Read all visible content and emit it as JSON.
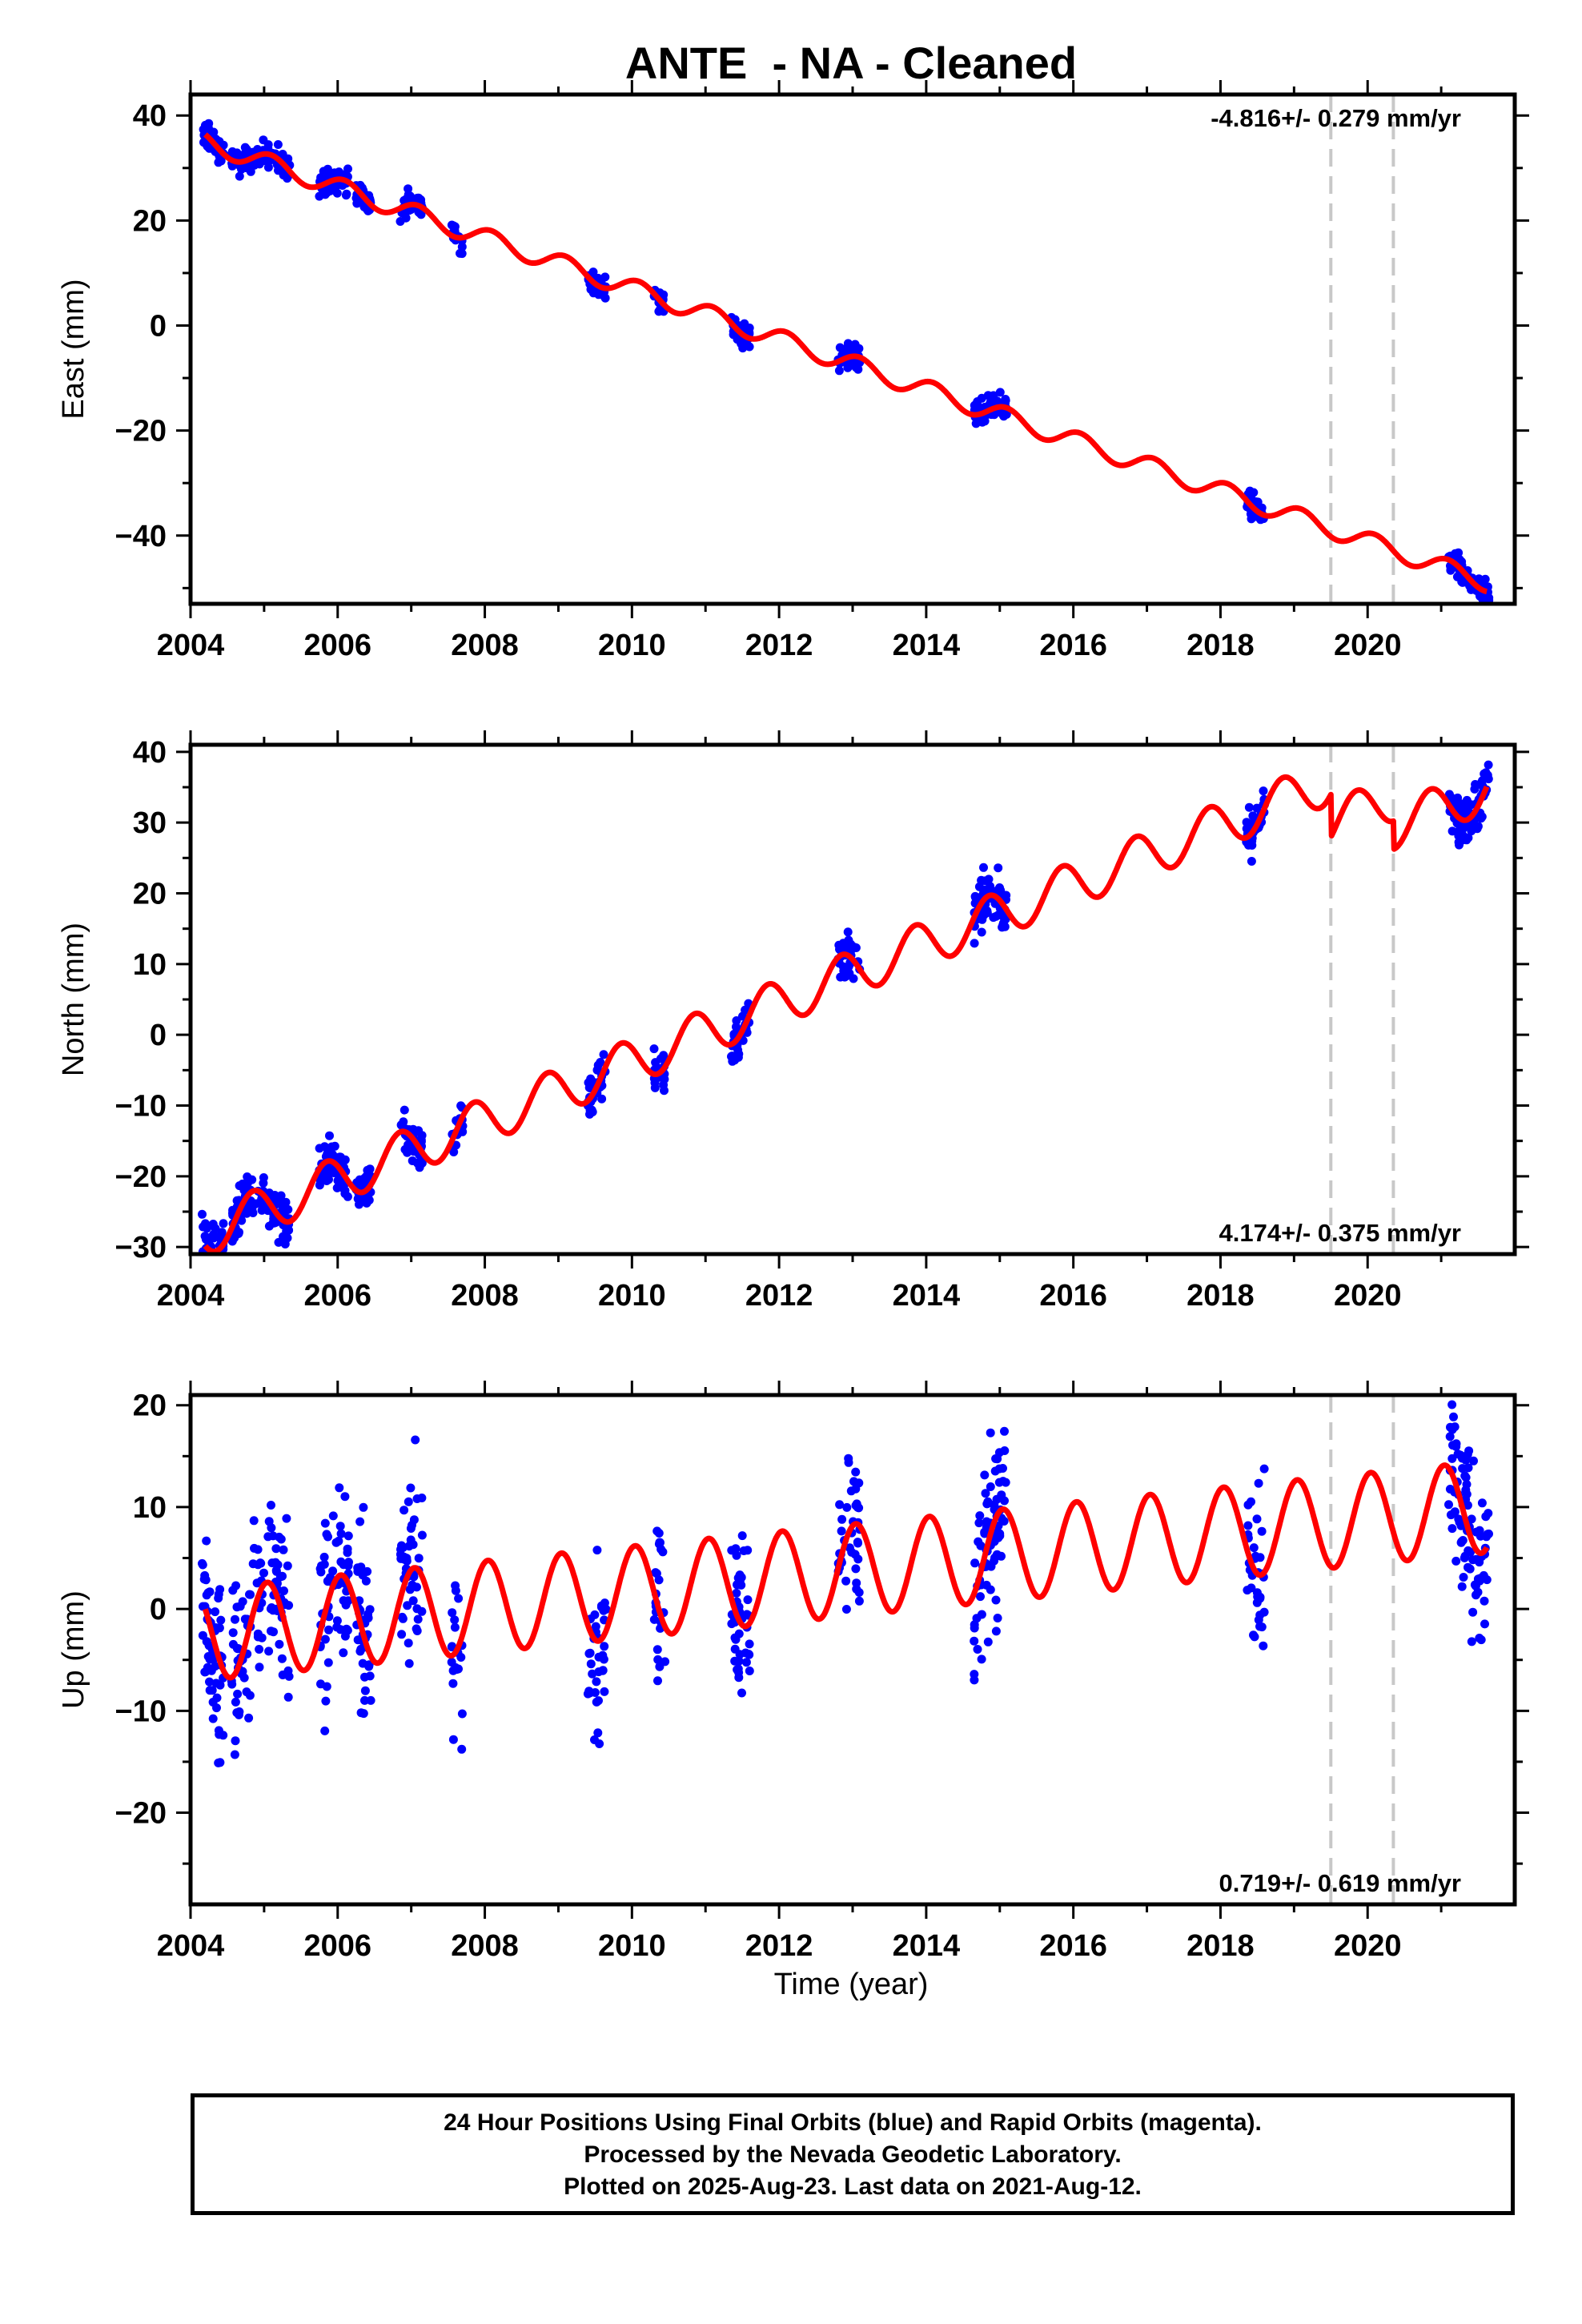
{
  "title": "ANTE  - NA - Cleaned",
  "xlabel": "Time (year)",
  "footer": {
    "line1": "24 Hour Positions Using Final Orbits (blue) and Rapid Orbits (magenta).",
    "line2": "Processed by the Nevada Geodetic Laboratory.",
    "line3": "Plotted on 2025-Aug-23. Last data on 2021-Aug-12."
  },
  "colors": {
    "observed": "#0000ff",
    "model": "#ff0000",
    "equipment_change": "#c8c8c8"
  },
  "chart_data": [
    {
      "type": "scatter",
      "ylabel": "East (mm)",
      "rate_label": "-4.816+/- 0.279 mm/yr",
      "rate_position": "top-right",
      "xlim": [
        2004.0,
        2022.0
      ],
      "ylim": [
        -53,
        44
      ],
      "xticks": [
        2004,
        2006,
        2008,
        2010,
        2012,
        2014,
        2016,
        2018,
        2020
      ],
      "yticks": [
        -40,
        -20,
        0,
        20,
        40
      ],
      "equipment_changes": [
        2019.5,
        2020.35
      ],
      "model": {
        "rate": -4.816,
        "ref_year": 2004.2,
        "intercept": 35.0,
        "annual_amp": 1.8,
        "phase": 1.0,
        "offsets": []
      },
      "observations": {
        "scatter": 1.2,
        "clusters": [
          {
            "start": 2004.15,
            "end": 2004.45,
            "n": 55
          },
          {
            "start": 2004.55,
            "end": 2005.0,
            "n": 60
          },
          {
            "start": 2005.05,
            "end": 2005.35,
            "n": 45
          },
          {
            "start": 2005.75,
            "end": 2006.15,
            "n": 60
          },
          {
            "start": 2006.25,
            "end": 2006.45,
            "n": 40
          },
          {
            "start": 2006.85,
            "end": 2007.15,
            "n": 45
          },
          {
            "start": 2007.55,
            "end": 2007.7,
            "n": 20
          },
          {
            "start": 2009.4,
            "end": 2009.65,
            "n": 35
          },
          {
            "start": 2010.3,
            "end": 2010.45,
            "n": 25
          },
          {
            "start": 2011.35,
            "end": 2011.6,
            "n": 45
          },
          {
            "start": 2012.8,
            "end": 2013.1,
            "n": 40
          },
          {
            "start": 2014.65,
            "end": 2015.1,
            "n": 80
          },
          {
            "start": 2018.35,
            "end": 2018.6,
            "n": 35
          },
          {
            "start": 2021.1,
            "end": 2021.65,
            "n": 90
          }
        ]
      }
    },
    {
      "type": "scatter",
      "ylabel": "North (mm)",
      "rate_label": "4.174+/- 0.375 mm/yr",
      "rate_position": "bottom-right",
      "xlim": [
        2004.0,
        2022.0
      ],
      "ylim": [
        -31,
        41
      ],
      "xticks": [
        2004,
        2006,
        2008,
        2010,
        2012,
        2014,
        2016,
        2018,
        2020
      ],
      "yticks": [
        -30,
        -20,
        -10,
        0,
        10,
        20,
        30,
        40
      ],
      "equipment_changes": [
        2019.5,
        2020.35
      ],
      "model": {
        "rate": 4.174,
        "ref_year": 2004.2,
        "intercept": -28.0,
        "annual_amp": 3.2,
        "phase": 2.5,
        "offsets": [
          {
            "year": 2019.5,
            "value": -6.0
          },
          {
            "year": 2020.35,
            "value": -4.0
          }
        ]
      },
      "observations": {
        "scatter": 1.6,
        "clusters": [
          {
            "start": 2004.15,
            "end": 2004.45,
            "n": 55
          },
          {
            "start": 2004.55,
            "end": 2005.0,
            "n": 60
          },
          {
            "start": 2005.05,
            "end": 2005.35,
            "n": 45
          },
          {
            "start": 2005.75,
            "end": 2006.15,
            "n": 60
          },
          {
            "start": 2006.25,
            "end": 2006.45,
            "n": 40
          },
          {
            "start": 2006.85,
            "end": 2007.15,
            "n": 45
          },
          {
            "start": 2007.55,
            "end": 2007.7,
            "n": 20
          },
          {
            "start": 2009.4,
            "end": 2009.65,
            "n": 35
          },
          {
            "start": 2010.3,
            "end": 2010.45,
            "n": 25
          },
          {
            "start": 2011.35,
            "end": 2011.6,
            "n": 45
          },
          {
            "start": 2012.8,
            "end": 2013.1,
            "n": 40
          },
          {
            "start": 2014.65,
            "end": 2015.1,
            "n": 80
          },
          {
            "start": 2018.35,
            "end": 2018.6,
            "n": 35
          },
          {
            "start": 2021.1,
            "end": 2021.65,
            "n": 90
          }
        ]
      }
    },
    {
      "type": "scatter",
      "ylabel": "Up (mm)",
      "rate_label": "0.719+/- 0.619 mm/yr",
      "rate_position": "bottom-right",
      "xlim": [
        2004.0,
        2022.0
      ],
      "ylim": [
        -29,
        21
      ],
      "xticks": [
        2004,
        2006,
        2008,
        2010,
        2012,
        2014,
        2016,
        2018,
        2020
      ],
      "yticks": [
        -20,
        -10,
        0,
        10,
        20
      ],
      "equipment_changes": [
        2019.5,
        2020.35
      ],
      "model": {
        "rate": 0.719,
        "ref_year": 2004.2,
        "intercept": -2.5,
        "annual_amp": 4.5,
        "phase": 1.3,
        "offsets": []
      },
      "observations": {
        "scatter": 4.5,
        "clusters": [
          {
            "start": 2004.15,
            "end": 2004.45,
            "n": 55
          },
          {
            "start": 2004.55,
            "end": 2005.0,
            "n": 60
          },
          {
            "start": 2005.05,
            "end": 2005.35,
            "n": 45
          },
          {
            "start": 2005.75,
            "end": 2006.15,
            "n": 60
          },
          {
            "start": 2006.25,
            "end": 2006.45,
            "n": 40
          },
          {
            "start": 2006.85,
            "end": 2007.15,
            "n": 45
          },
          {
            "start": 2007.55,
            "end": 2007.7,
            "n": 20
          },
          {
            "start": 2009.4,
            "end": 2009.65,
            "n": 35
          },
          {
            "start": 2010.3,
            "end": 2010.45,
            "n": 25
          },
          {
            "start": 2011.35,
            "end": 2011.6,
            "n": 45
          },
          {
            "start": 2012.8,
            "end": 2013.1,
            "n": 40
          },
          {
            "start": 2014.65,
            "end": 2015.1,
            "n": 80
          },
          {
            "start": 2018.35,
            "end": 2018.6,
            "n": 35
          },
          {
            "start": 2021.1,
            "end": 2021.65,
            "n": 90
          }
        ]
      }
    }
  ]
}
